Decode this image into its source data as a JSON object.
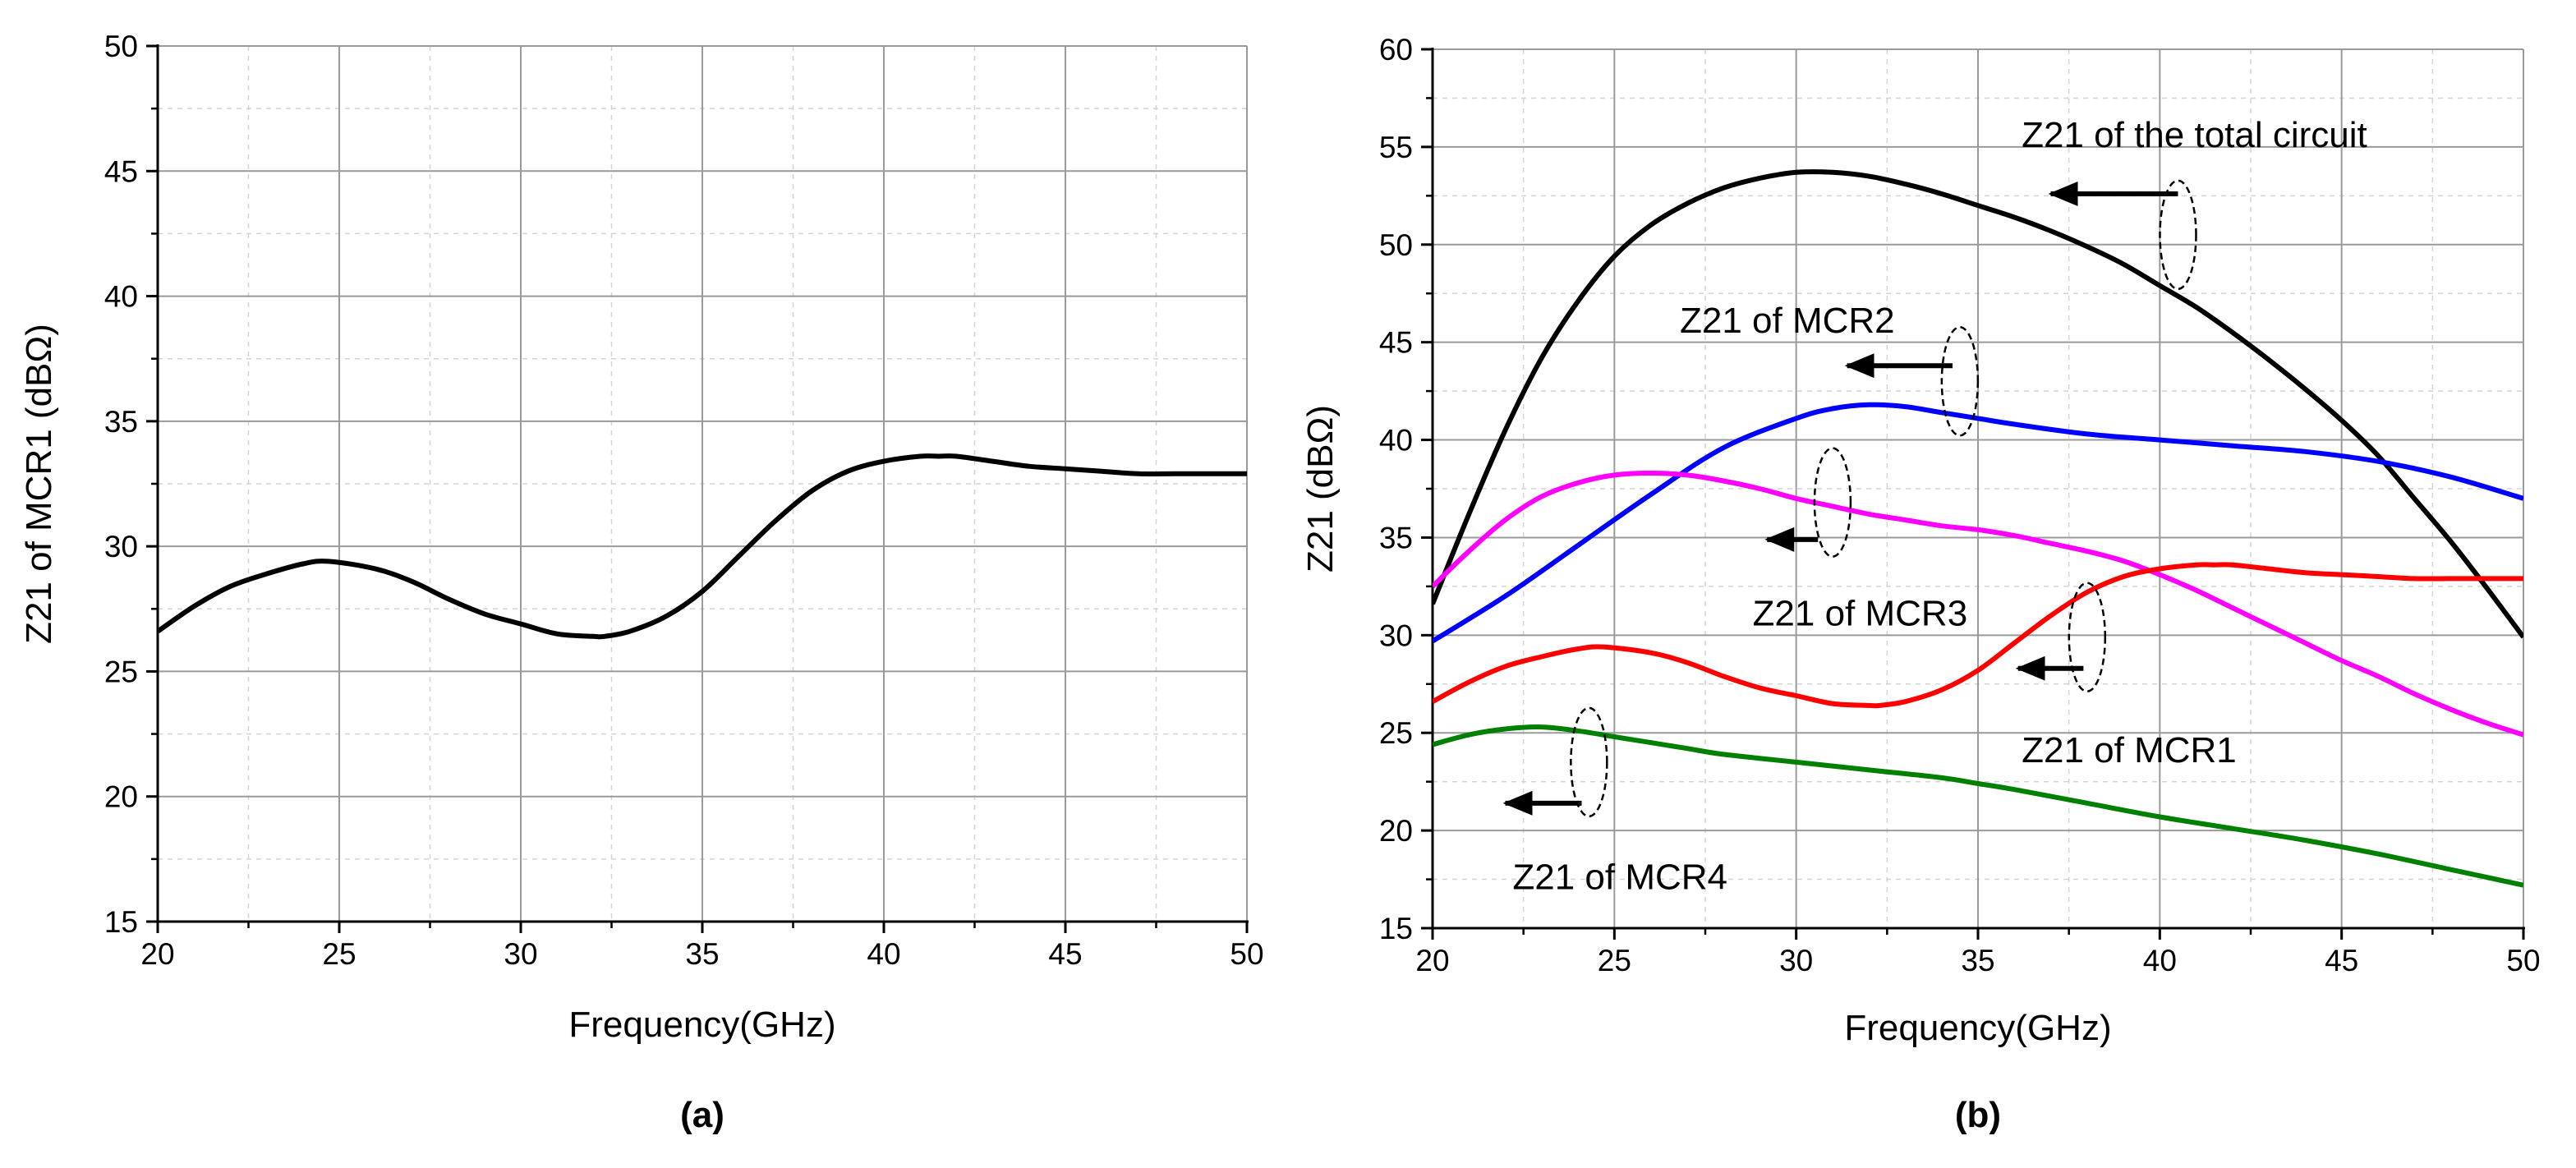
{
  "chart_data": [
    {
      "panel": "(a)",
      "type": "line",
      "xlabel": "Frequency(GHz)",
      "ylabel": "Z21 of MCR1 (dBΩ)",
      "xlim": [
        20,
        50
      ],
      "ylim": [
        15,
        50
      ],
      "xticks": [
        20,
        25,
        30,
        35,
        40,
        45,
        50
      ],
      "yticks": [
        15,
        20,
        25,
        30,
        35,
        40,
        45,
        50
      ],
      "grid": true,
      "series": [
        {
          "name": "Z21 of MCR1",
          "color": "#000000",
          "x": [
            20,
            21,
            22,
            23,
            24,
            24.7,
            26,
            27,
            28,
            29,
            30,
            31,
            32,
            32.3,
            33,
            34,
            35,
            36,
            37,
            38,
            39,
            40,
            41,
            41.5,
            42,
            43,
            44,
            45,
            46,
            47,
            48,
            49,
            50
          ],
          "y": [
            26.6,
            27.6,
            28.4,
            28.9,
            29.3,
            29.4,
            29.1,
            28.6,
            27.9,
            27.3,
            26.9,
            26.5,
            26.4,
            26.4,
            26.6,
            27.2,
            28.2,
            29.6,
            31.0,
            32.2,
            33.0,
            33.4,
            33.6,
            33.6,
            33.6,
            33.4,
            33.2,
            33.1,
            33.0,
            32.9,
            32.9,
            32.9,
            32.9
          ]
        }
      ]
    },
    {
      "panel": "(b)",
      "type": "line",
      "xlabel": "Frequency(GHz)",
      "ylabel": "Z21 (dBΩ)",
      "xlim": [
        20,
        50
      ],
      "ylim": [
        15,
        60
      ],
      "xticks": [
        20,
        25,
        30,
        35,
        40,
        45,
        50
      ],
      "yticks": [
        15,
        20,
        25,
        30,
        35,
        40,
        45,
        50,
        55,
        60
      ],
      "grid": true,
      "series": [
        {
          "name": "Z21 of the total circuit",
          "color": "#000000",
          "x": [
            20,
            21,
            22,
            23,
            24,
            25,
            26,
            27,
            28,
            29,
            30,
            31,
            32,
            33,
            34,
            35,
            36,
            37,
            38,
            39,
            40,
            41,
            42,
            43,
            44,
            45,
            46,
            47,
            48,
            49,
            50
          ],
          "y": [
            31.6,
            36.2,
            40.5,
            44.2,
            47.1,
            49.4,
            51.0,
            52.1,
            52.9,
            53.4,
            53.7,
            53.7,
            53.5,
            53.1,
            52.6,
            52.0,
            51.4,
            50.7,
            49.9,
            49.0,
            47.9,
            46.8,
            45.5,
            44.1,
            42.6,
            41.0,
            39.2,
            37.0,
            34.8,
            32.4,
            29.9
          ]
        },
        {
          "name": "Z21 of MCR2",
          "color": "#0000ff",
          "x": [
            20,
            22,
            24,
            26,
            28,
            30,
            31,
            32,
            33,
            34,
            35,
            36,
            38,
            40,
            42,
            44,
            46,
            48,
            50
          ],
          "y": [
            29.7,
            32.0,
            34.6,
            37.2,
            39.6,
            41.1,
            41.6,
            41.8,
            41.7,
            41.4,
            41.1,
            40.8,
            40.3,
            40.0,
            39.7,
            39.4,
            38.9,
            38.1,
            37.0
          ]
        },
        {
          "name": "Z21 of MCR3",
          "color": "#ff00ff",
          "x": [
            20,
            21,
            22,
            23,
            24,
            25,
            26,
            27,
            28,
            29,
            30,
            31,
            32,
            33,
            34,
            35,
            36,
            37,
            38,
            39,
            40,
            41,
            42,
            43,
            44,
            45,
            46,
            47,
            48,
            49,
            50
          ],
          "y": [
            32.5,
            34.3,
            35.9,
            37.1,
            37.8,
            38.2,
            38.3,
            38.2,
            37.9,
            37.5,
            37.0,
            36.6,
            36.2,
            35.9,
            35.6,
            35.4,
            35.1,
            34.7,
            34.3,
            33.8,
            33.1,
            32.3,
            31.4,
            30.5,
            29.6,
            28.7,
            27.9,
            27.0,
            26.2,
            25.5,
            24.9
          ]
        },
        {
          "name": "Z21 of MCR1",
          "color": "#ff0000",
          "x": [
            20,
            21,
            22,
            23,
            24,
            24.7,
            26,
            27,
            28,
            29,
            30,
            31,
            32,
            32.3,
            33,
            34,
            35,
            36,
            37,
            38,
            39,
            40,
            41,
            41.5,
            42,
            43,
            44,
            45,
            46,
            47,
            48,
            49,
            50
          ],
          "y": [
            26.6,
            27.6,
            28.4,
            28.9,
            29.3,
            29.4,
            29.1,
            28.6,
            27.9,
            27.3,
            26.9,
            26.5,
            26.4,
            26.4,
            26.6,
            27.2,
            28.2,
            29.6,
            31.0,
            32.2,
            33.0,
            33.4,
            33.6,
            33.6,
            33.6,
            33.4,
            33.2,
            33.1,
            33.0,
            32.9,
            32.9,
            32.9,
            32.9
          ]
        },
        {
          "name": "Z21 of MCR4",
          "color": "#008000",
          "x": [
            20,
            21,
            22,
            23,
            24,
            25,
            26,
            27,
            28,
            30,
            32,
            34,
            35,
            36,
            38,
            40,
            42,
            44,
            46,
            48,
            50
          ],
          "y": [
            24.4,
            24.9,
            25.2,
            25.3,
            25.1,
            24.8,
            24.5,
            24.2,
            23.9,
            23.5,
            23.1,
            22.7,
            22.4,
            22.1,
            21.4,
            20.7,
            20.1,
            19.5,
            18.8,
            18.0,
            17.2
          ]
        }
      ],
      "annotations": [
        {
          "text": "Z21 of the total circuit",
          "series": "Z21 of the total circuit",
          "ellipse_at": [
            40.5,
            50.5
          ],
          "arrow_from": [
            40.5,
            52.6
          ],
          "arrow_to": [
            37.0,
            52.6
          ],
          "label_at": [
            36.2,
            55.0
          ]
        },
        {
          "text": "Z21 of MCR2",
          "series": "Z21 of MCR2",
          "ellipse_at": [
            34.5,
            43.0
          ],
          "arrow_from": [
            34.3,
            43.8
          ],
          "arrow_to": [
            31.4,
            43.8
          ],
          "label_at": [
            26.8,
            45.5
          ]
        },
        {
          "text": "Z21 of MCR3",
          "series": "Z21 of MCR3",
          "ellipse_at": [
            31.0,
            36.8
          ],
          "arrow_from": [
            30.6,
            34.9
          ],
          "arrow_to": [
            29.2,
            34.9
          ],
          "label_at": [
            28.8,
            30.5
          ]
        },
        {
          "text": "Z21 of MCR1",
          "series": "Z21 of MCR1",
          "ellipse_at": [
            38.0,
            29.9
          ],
          "arrow_from": [
            37.9,
            28.3
          ],
          "arrow_to": [
            36.1,
            28.3
          ],
          "label_at": [
            36.2,
            23.5
          ]
        },
        {
          "text": "Z21 of MCR4",
          "series": "Z21 of MCR4",
          "ellipse_at": [
            24.3,
            23.5
          ],
          "arrow_from": [
            24.1,
            21.4
          ],
          "arrow_to": [
            22.0,
            21.4
          ],
          "label_at": [
            22.2,
            17.0
          ]
        }
      ]
    }
  ]
}
